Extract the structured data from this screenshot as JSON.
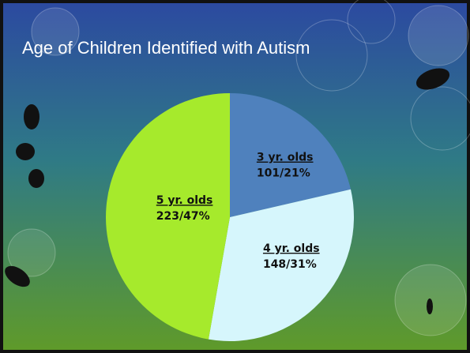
{
  "chart_data": {
    "type": "pie",
    "title": "Age of Children Identified with Autism",
    "categories": [
      "3 yr. olds",
      "4 yr. olds",
      "5 yr. olds"
    ],
    "values": [
      101,
      148,
      223
    ],
    "value_labels": [
      "101/21%",
      "148/31%",
      "223/47%"
    ],
    "colors": [
      "#4f81bd",
      "#d6f6fc",
      "#a6ea2c"
    ]
  }
}
